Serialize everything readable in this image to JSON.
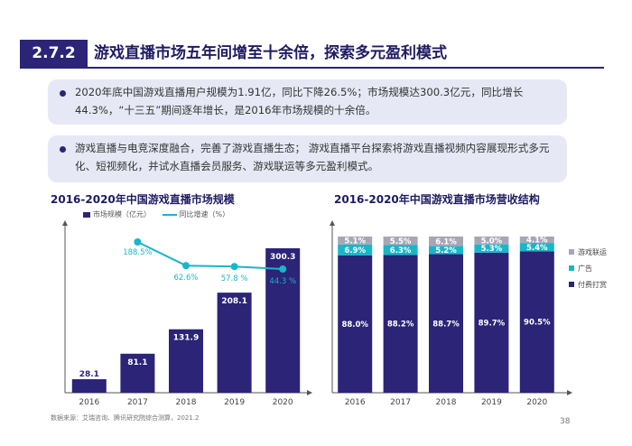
{
  "header": {
    "section_number": "2.7.2",
    "title": "游戏直播市场五年间增至十余倍，探索多元盈利模式"
  },
  "bullets": [
    "2020年底中国游戏直播用户规模为1.91亿，同比下降26.5%；市场规模达300.3亿元，同比增长44.3%，“十三五”期间逐年增长，是2016年市场规模的十余倍。",
    "游戏直播与电竞深度融合，完善了游戏直播生态； 游戏直播平台探索将游戏直播视频内容展现形式多元化、短视频化，并试水直播会员服务、游戏联运等多元盈利模式。"
  ],
  "colors": {
    "primary": "#2b2477",
    "cyan": "#18b6c8",
    "gray": "#a8a6b5",
    "box": "#e6e9f5"
  },
  "chart_data": [
    {
      "type": "bar",
      "title": "2016-2020年中国游戏直播市场规模",
      "categories": [
        "2016",
        "2017",
        "2018",
        "2019",
        "2020"
      ],
      "series": [
        {
          "name": "市场规模（亿元）",
          "type": "bar",
          "values": [
            28.1,
            81.1,
            131.9,
            208.1,
            300.3
          ]
        },
        {
          "name": "同比增速（%）",
          "type": "line",
          "values": [
            null,
            188.5,
            62.6,
            57.8,
            44.3
          ],
          "labels": [
            "",
            "188.5%",
            "62.6%",
            "57.8 %",
            "44.3 %"
          ]
        }
      ],
      "legend": "top-left"
    },
    {
      "type": "bar",
      "stacked": true,
      "title": "2016-2020年中国游戏直播市场营收结构",
      "categories": [
        "2016",
        "2017",
        "2018",
        "2019",
        "2020"
      ],
      "series": [
        {
          "name": "付费打赏",
          "values": [
            88.0,
            88.2,
            88.7,
            89.7,
            90.5
          ]
        },
        {
          "name": "广告",
          "values": [
            6.9,
            6.3,
            5.2,
            5.3,
            5.4
          ]
        },
        {
          "name": "游戏联运",
          "values": [
            5.1,
            5.5,
            6.1,
            5.0,
            4.1
          ]
        }
      ],
      "legend": "right"
    }
  ],
  "footer": {
    "source": "数据来源：艾瑞咨询、腾讯研究院综合测算，2021.2",
    "page_number": "38"
  }
}
